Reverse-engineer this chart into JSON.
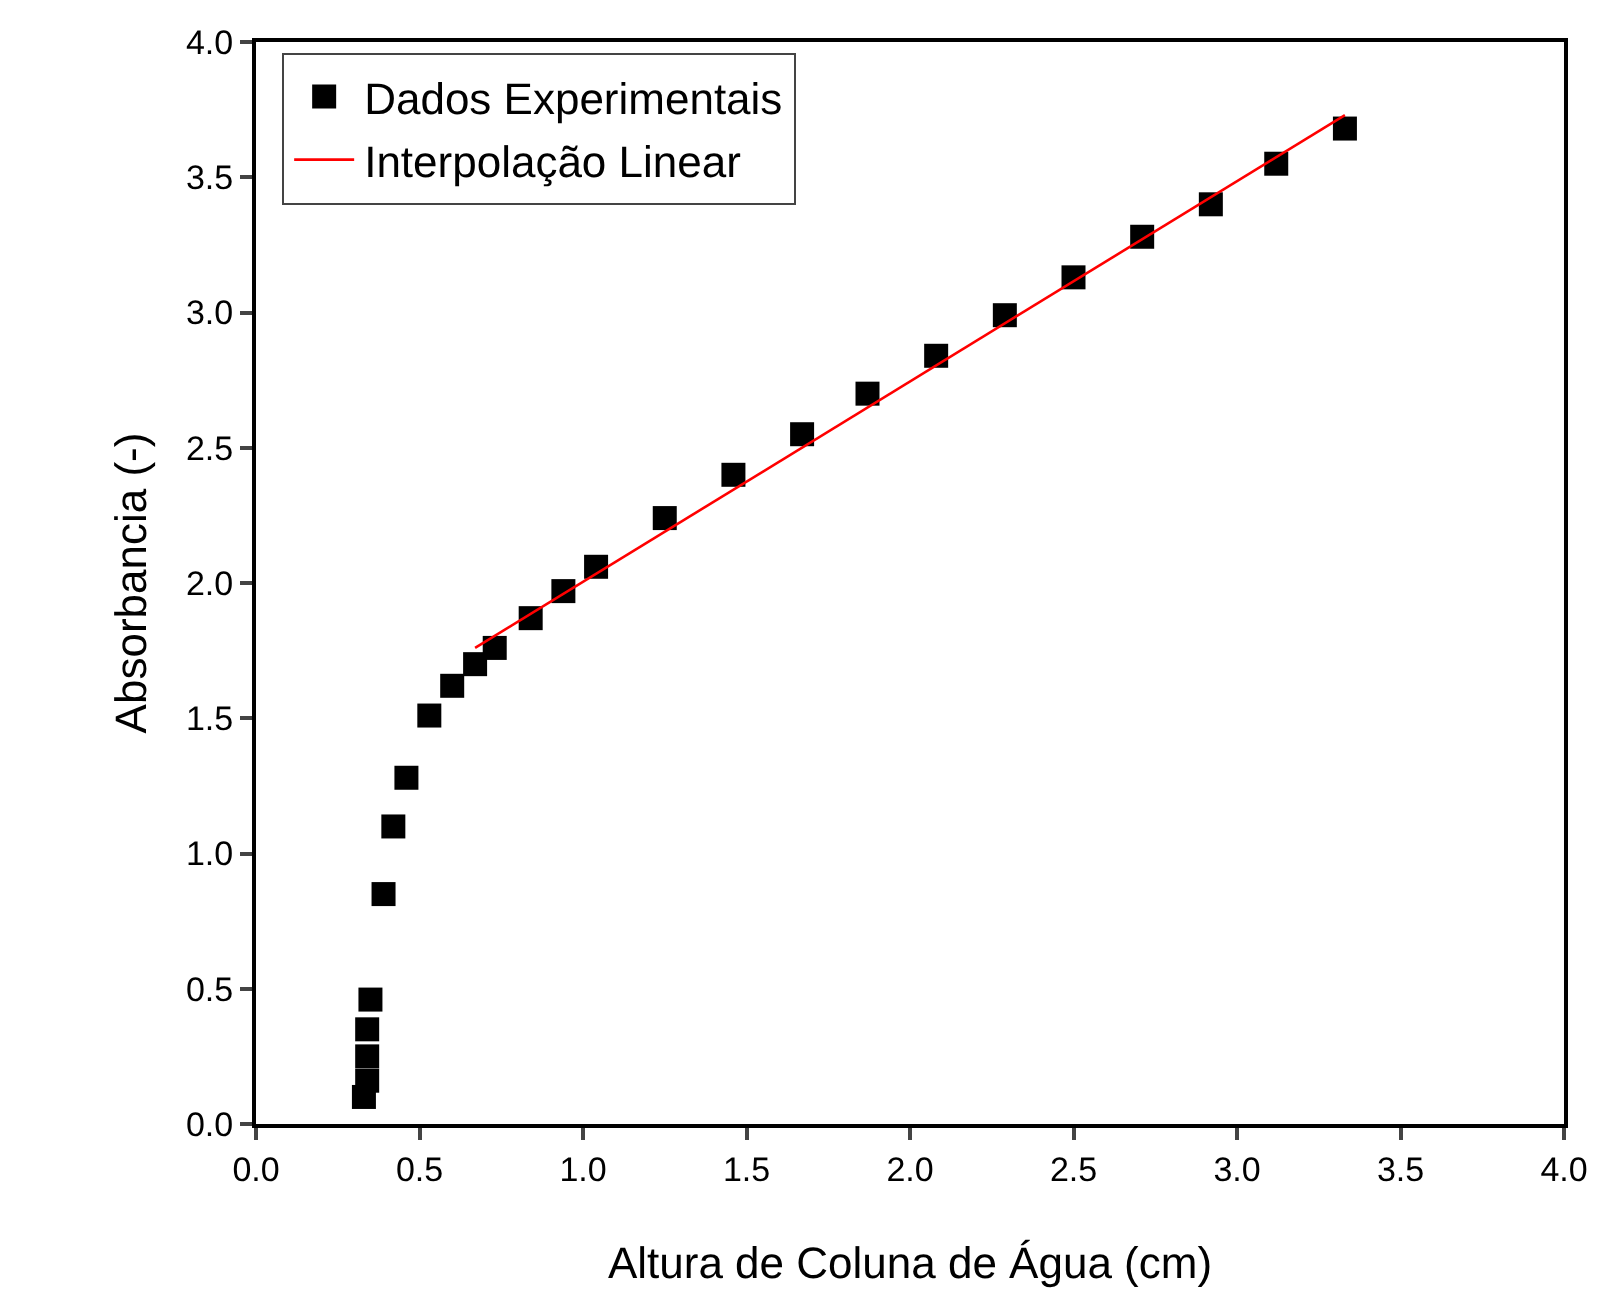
{
  "chart_data": {
    "type": "scatter",
    "xlabel": "Altura de Coluna de Água (cm)",
    "ylabel": "Absorbancia (-)",
    "xlim": [
      0,
      4
    ],
    "xticks": [
      {
        "value": 0,
        "label": "0.0"
      },
      {
        "value": 0.5,
        "label": "0.5"
      },
      {
        "value": 1,
        "label": "1.0"
      },
      {
        "value": 1.5,
        "label": "1.5"
      },
      {
        "value": 2,
        "label": "2.0"
      },
      {
        "value": 2.5,
        "label": "2.5"
      },
      {
        "value": 3,
        "label": "3.0"
      },
      {
        "value": 3.5,
        "label": "3.5"
      },
      {
        "value": 4,
        "label": "4.0"
      }
    ],
    "ylim": [
      0,
      4
    ],
    "yticks": [
      {
        "value": 0,
        "label": "0.0"
      },
      {
        "value": 0.5,
        "label": "0.5"
      },
      {
        "value": 1,
        "label": "1.0"
      },
      {
        "value": 1.5,
        "label": "1.5"
      },
      {
        "value": 2,
        "label": "2.0"
      },
      {
        "value": 2.5,
        "label": "2.5"
      },
      {
        "value": 3,
        "label": "3.0"
      },
      {
        "value": 3.5,
        "label": "3.5"
      },
      {
        "value": 4,
        "label": "4.0"
      }
    ],
    "grid": false,
    "legend": "top left",
    "series": [
      {
        "name": "Dados Experimentais",
        "marker": "square",
        "color": "#000000",
        "x": [
          0.33,
          0.34,
          0.34,
          0.34,
          0.35,
          0.39,
          0.42,
          0.46,
          0.53,
          0.6,
          0.67,
          0.73,
          0.84,
          0.94,
          1.04,
          1.25,
          1.46,
          1.67,
          1.87,
          2.08,
          2.29,
          2.5,
          2.71,
          2.92,
          3.12,
          3.33
        ],
        "values": [
          0.1,
          0.16,
          0.25,
          0.35,
          0.46,
          0.85,
          1.1,
          1.28,
          1.51,
          1.62,
          1.7,
          1.76,
          1.87,
          1.97,
          2.06,
          2.24,
          2.4,
          2.55,
          2.7,
          2.84,
          2.99,
          3.13,
          3.28,
          3.4,
          3.55,
          3.68
        ]
      },
      {
        "name": "Interpolação Linear",
        "type": "line",
        "color": "#ff0000",
        "line_style": "solid",
        "x": [
          0.67,
          3.33
        ],
        "values": [
          1.76,
          3.73
        ]
      }
    ]
  }
}
